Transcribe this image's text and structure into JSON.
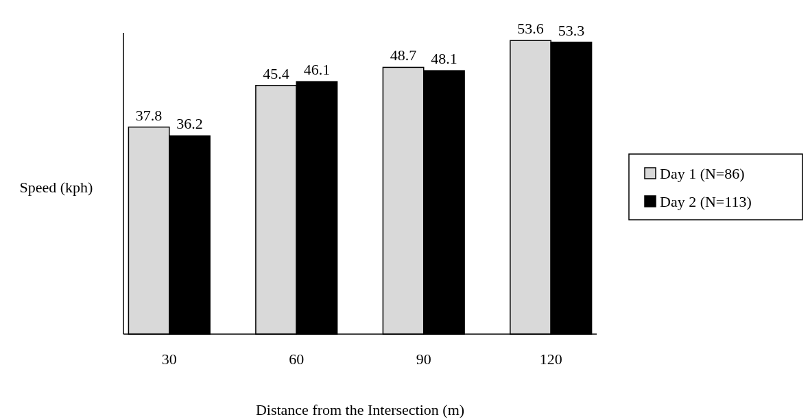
{
  "chart_data": {
    "type": "bar",
    "xlabel": "Distance from the Intersection (m)",
    "ylabel": "Speed (kph)",
    "categories": [
      "30",
      "60",
      "90",
      "120"
    ],
    "series": [
      {
        "name": "Day 1 (N=86)",
        "color": "#d9d9d9",
        "values": [
          37.8,
          45.4,
          48.7,
          53.6
        ]
      },
      {
        "name": "Day 2 (N=113)",
        "color": "#000000",
        "values": [
          36.2,
          46.1,
          48.1,
          53.3
        ]
      }
    ],
    "ylim": [
      0,
      55
    ],
    "tick_labels": "x",
    "data_labels": true,
    "legend": "right"
  }
}
